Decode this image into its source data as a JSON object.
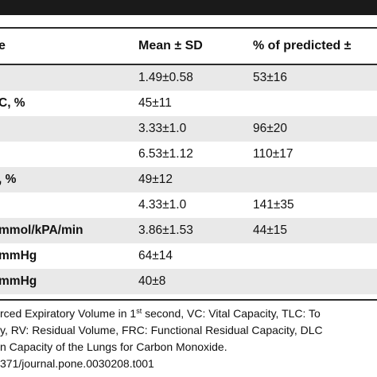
{
  "table": {
    "headers": {
      "parameter": "e",
      "mean": "Mean ± SD",
      "predicted": "% of predicted ±"
    },
    "rows": [
      {
        "parameter": "",
        "mean": "1.49±0.58",
        "predicted": "53±16"
      },
      {
        "parameter": "C, %",
        "mean": "45±11",
        "predicted": ""
      },
      {
        "parameter": "",
        "mean": "3.33±1.0",
        "predicted": "96±20"
      },
      {
        "parameter": "",
        "mean": "6.53±1.12",
        "predicted": "110±17"
      },
      {
        "parameter": ", %",
        "mean": "49±12",
        "predicted": ""
      },
      {
        "parameter": "",
        "mean": "4.33±1.0",
        "predicted": "141±35"
      },
      {
        "parameter": "mmol/kPA/min",
        "mean": "3.86±1.53",
        "predicted": "44±15"
      },
      {
        "parameter": "mmHg",
        "mean": "64±14",
        "predicted": ""
      },
      {
        "parameter": " mmHg",
        "mean": "40±8",
        "predicted": ""
      }
    ]
  },
  "footnote": {
    "line1_pre": "rced Expiratory Volume in 1",
    "line1_sup": "st",
    "line1_post": " second, VC: Vital Capacity, TLC: To",
    "line2": "y, RV: Residual Volume, FRC: Functional Residual Capacity, DLC",
    "line3": "n Capacity of the Lungs for Carbon Monoxide.",
    "line4": "371/journal.pone.0030208.t001"
  }
}
